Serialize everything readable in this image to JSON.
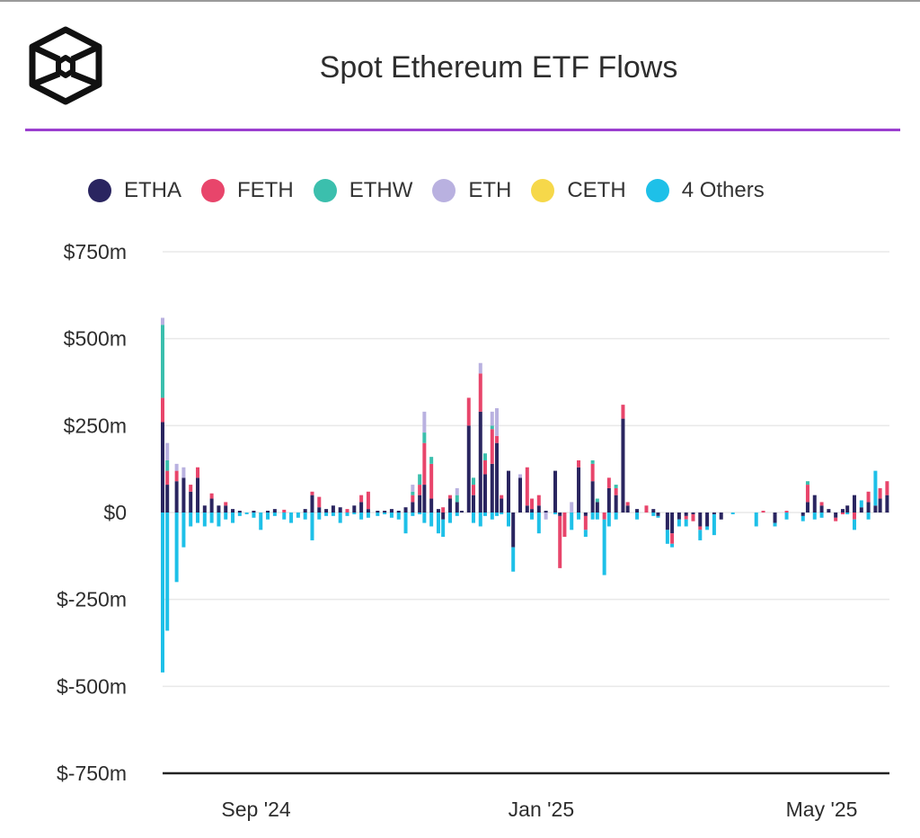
{
  "header": {
    "title": "Spot Ethereum ETF Flows",
    "logo_icon": "cube-logo-icon"
  },
  "colors": {
    "accent_rule": "#9b3fcf"
  },
  "chart_data": {
    "type": "bar",
    "stacked": true,
    "title": "Spot Ethereum ETF Flows",
    "xlabel": "",
    "ylabel": "",
    "x_unit": "calendar days since 2024-07-23",
    "xlim": [
      0,
      311
    ],
    "ylim": [
      -750,
      750
    ],
    "grid": true,
    "legend_position": "top",
    "y_ticks": [
      {
        "value": 750,
        "label": "$750m"
      },
      {
        "value": 500,
        "label": "$500m"
      },
      {
        "value": 250,
        "label": "$250m"
      },
      {
        "value": 0,
        "label": "$0"
      },
      {
        "value": -250,
        "label": "$-250m"
      },
      {
        "value": -500,
        "label": "$-500m"
      },
      {
        "value": -750,
        "label": "$-750m"
      }
    ],
    "x_ticks": [
      {
        "value": 40,
        "label": "Sep '24"
      },
      {
        "value": 162,
        "label": "Jan '25"
      },
      {
        "value": 282,
        "label": "May '25"
      }
    ],
    "series": [
      {
        "name": "ETHA",
        "color": "#2a2560"
      },
      {
        "name": "FETH",
        "color": "#e8456b"
      },
      {
        "name": "ETHW",
        "color": "#3bbfad"
      },
      {
        "name": "ETH",
        "color": "#b9b1e0"
      },
      {
        "name": "CETH",
        "color": "#f6d84a"
      },
      {
        "name": "4 Others",
        "color": "#1ec0e8"
      }
    ],
    "rows_format": [
      "day",
      "ETHA",
      "FETH",
      "ETHW",
      "ETH",
      "CETH",
      "4 Others"
    ],
    "rows": [
      [
        0,
        260,
        70,
        210,
        20,
        0,
        -460
      ],
      [
        2,
        80,
        40,
        30,
        50,
        0,
        -340
      ],
      [
        6,
        90,
        30,
        0,
        20,
        0,
        -200
      ],
      [
        9,
        100,
        0,
        0,
        30,
        0,
        -100
      ],
      [
        12,
        60,
        20,
        0,
        0,
        0,
        -40
      ],
      [
        15,
        100,
        30,
        0,
        0,
        0,
        -30
      ],
      [
        18,
        20,
        0,
        0,
        0,
        0,
        -40
      ],
      [
        21,
        40,
        15,
        0,
        0,
        0,
        -30
      ],
      [
        24,
        20,
        0,
        0,
        0,
        0,
        -40
      ],
      [
        27,
        20,
        10,
        0,
        0,
        0,
        -20
      ],
      [
        30,
        10,
        0,
        0,
        0,
        0,
        -30
      ],
      [
        33,
        5,
        0,
        0,
        0,
        0,
        -10
      ],
      [
        36,
        0,
        0,
        0,
        0,
        0,
        -5
      ],
      [
        39,
        5,
        0,
        0,
        0,
        0,
        -15
      ],
      [
        42,
        0,
        0,
        0,
        0,
        0,
        -50
      ],
      [
        45,
        5,
        0,
        0,
        0,
        0,
        -20
      ],
      [
        48,
        10,
        0,
        0,
        0,
        0,
        -10
      ],
      [
        52,
        0,
        8,
        0,
        0,
        0,
        -20
      ],
      [
        55,
        0,
        0,
        0,
        0,
        0,
        -30
      ],
      [
        58,
        0,
        0,
        0,
        0,
        0,
        -15
      ],
      [
        61,
        10,
        0,
        0,
        0,
        0,
        -20
      ],
      [
        64,
        50,
        10,
        0,
        0,
        0,
        -80
      ],
      [
        67,
        15,
        30,
        0,
        0,
        0,
        -20
      ],
      [
        70,
        10,
        0,
        0,
        0,
        0,
        -10
      ],
      [
        73,
        20,
        0,
        0,
        0,
        0,
        -10
      ],
      [
        76,
        15,
        0,
        0,
        0,
        0,
        -30
      ],
      [
        79,
        0,
        10,
        0,
        0,
        0,
        -10
      ],
      [
        82,
        20,
        0,
        0,
        0,
        0,
        -5
      ],
      [
        85,
        30,
        20,
        0,
        0,
        0,
        -20
      ],
      [
        88,
        10,
        50,
        0,
        0,
        0,
        -15
      ],
      [
        92,
        5,
        0,
        0,
        0,
        0,
        -10
      ],
      [
        95,
        5,
        0,
        0,
        0,
        0,
        -5
      ],
      [
        98,
        10,
        0,
        0,
        0,
        0,
        -15
      ],
      [
        101,
        5,
        0,
        0,
        0,
        0,
        -20
      ],
      [
        104,
        15,
        0,
        0,
        0,
        0,
        -60
      ],
      [
        107,
        30,
        20,
        10,
        20,
        0,
        -10
      ],
      [
        110,
        50,
        30,
        30,
        0,
        0,
        -5
      ],
      [
        112,
        80,
        120,
        30,
        60,
        0,
        -30
      ],
      [
        115,
        40,
        100,
        20,
        0,
        0,
        -40
      ],
      [
        118,
        10,
        0,
        0,
        0,
        0,
        -60
      ],
      [
        120,
        -20,
        15,
        0,
        0,
        0,
        -50
      ],
      [
        123,
        40,
        10,
        0,
        0,
        0,
        -30
      ],
      [
        126,
        30,
        0,
        20,
        20,
        0,
        -10
      ],
      [
        128,
        5,
        0,
        0,
        0,
        0,
        0
      ],
      [
        131,
        250,
        80,
        0,
        0,
        0,
        0
      ],
      [
        133,
        50,
        30,
        20,
        0,
        0,
        -30
      ],
      [
        136,
        290,
        110,
        0,
        30,
        0,
        -40
      ],
      [
        138,
        110,
        40,
        20,
        0,
        0,
        -10
      ],
      [
        141,
        140,
        100,
        10,
        40,
        0,
        -20
      ],
      [
        143,
        200,
        20,
        0,
        80,
        0,
        -10
      ],
      [
        145,
        40,
        10,
        0,
        0,
        0,
        -5
      ],
      [
        148,
        120,
        0,
        0,
        0,
        0,
        -40
      ],
      [
        150,
        -100,
        0,
        0,
        0,
        0,
        -70
      ],
      [
        153,
        100,
        0,
        0,
        10,
        0,
        0
      ],
      [
        156,
        20,
        110,
        0,
        0,
        0,
        0
      ],
      [
        158,
        10,
        30,
        0,
        0,
        0,
        -20
      ],
      [
        161,
        20,
        30,
        0,
        0,
        0,
        -60
      ],
      [
        164,
        5,
        0,
        0,
        -20,
        0,
        0
      ],
      [
        168,
        120,
        0,
        0,
        0,
        0,
        -5
      ],
      [
        170,
        -10,
        -150,
        0,
        0,
        0,
        0
      ],
      [
        172,
        0,
        -70,
        0,
        0,
        0,
        0
      ],
      [
        175,
        0,
        0,
        0,
        30,
        0,
        -50
      ],
      [
        178,
        130,
        20,
        0,
        0,
        0,
        -20
      ],
      [
        181,
        -10,
        -40,
        0,
        0,
        0,
        -20
      ],
      [
        184,
        90,
        50,
        10,
        0,
        0,
        -20
      ],
      [
        186,
        30,
        0,
        10,
        0,
        0,
        -20
      ],
      [
        189,
        0,
        -20,
        0,
        0,
        0,
        -160
      ],
      [
        191,
        70,
        30,
        0,
        0,
        0,
        -40
      ],
      [
        194,
        50,
        20,
        10,
        0,
        0,
        -20
      ],
      [
        197,
        270,
        40,
        0,
        0,
        0,
        0
      ],
      [
        199,
        20,
        10,
        0,
        0,
        0,
        0
      ],
      [
        203,
        10,
        0,
        0,
        0,
        0,
        -20
      ],
      [
        207,
        0,
        20,
        0,
        0,
        0,
        0
      ],
      [
        210,
        10,
        0,
        0,
        0,
        0,
        -10
      ],
      [
        212,
        -10,
        0,
        0,
        0,
        0,
        -5
      ],
      [
        216,
        -50,
        0,
        0,
        0,
        0,
        -40
      ],
      [
        218,
        -60,
        -30,
        0,
        0,
        0,
        -10
      ],
      [
        221,
        -20,
        0,
        0,
        0,
        0,
        -20
      ],
      [
        224,
        -10,
        -10,
        0,
        0,
        0,
        -20
      ],
      [
        227,
        -5,
        -20,
        0,
        0,
        0,
        0
      ],
      [
        230,
        -40,
        -10,
        0,
        0,
        0,
        -30
      ],
      [
        233,
        -40,
        0,
        0,
        0,
        0,
        -10
      ],
      [
        236,
        -5,
        0,
        0,
        0,
        0,
        -60
      ],
      [
        239,
        -20,
        0,
        0,
        0,
        0,
        0
      ],
      [
        244,
        0,
        0,
        0,
        0,
        0,
        -5
      ],
      [
        254,
        0,
        0,
        0,
        0,
        0,
        -40
      ],
      [
        257,
        0,
        5,
        0,
        0,
        0,
        0
      ],
      [
        262,
        -30,
        0,
        0,
        0,
        0,
        -10
      ],
      [
        267,
        0,
        5,
        0,
        0,
        0,
        -20
      ],
      [
        274,
        -10,
        0,
        0,
        0,
        0,
        -15
      ],
      [
        276,
        30,
        50,
        10,
        0,
        0,
        0
      ],
      [
        279,
        50,
        0,
        0,
        0,
        0,
        -20
      ],
      [
        282,
        20,
        10,
        0,
        0,
        0,
        -15
      ],
      [
        285,
        10,
        0,
        0,
        0,
        0,
        0
      ],
      [
        288,
        -15,
        -10,
        0,
        0,
        0,
        0
      ],
      [
        291,
        10,
        -5,
        0,
        0,
        0,
        0
      ],
      [
        293,
        20,
        0,
        0,
        0,
        0,
        -5
      ],
      [
        296,
        50,
        -20,
        0,
        0,
        0,
        -30
      ],
      [
        299,
        15,
        0,
        0,
        0,
        0,
        20
      ],
      [
        302,
        30,
        30,
        0,
        0,
        0,
        -20
      ],
      [
        305,
        20,
        0,
        0,
        0,
        0,
        100
      ],
      [
        307,
        40,
        30,
        0,
        0,
        0,
        0
      ],
      [
        310,
        50,
        40,
        0,
        0,
        0,
        0
      ]
    ]
  }
}
